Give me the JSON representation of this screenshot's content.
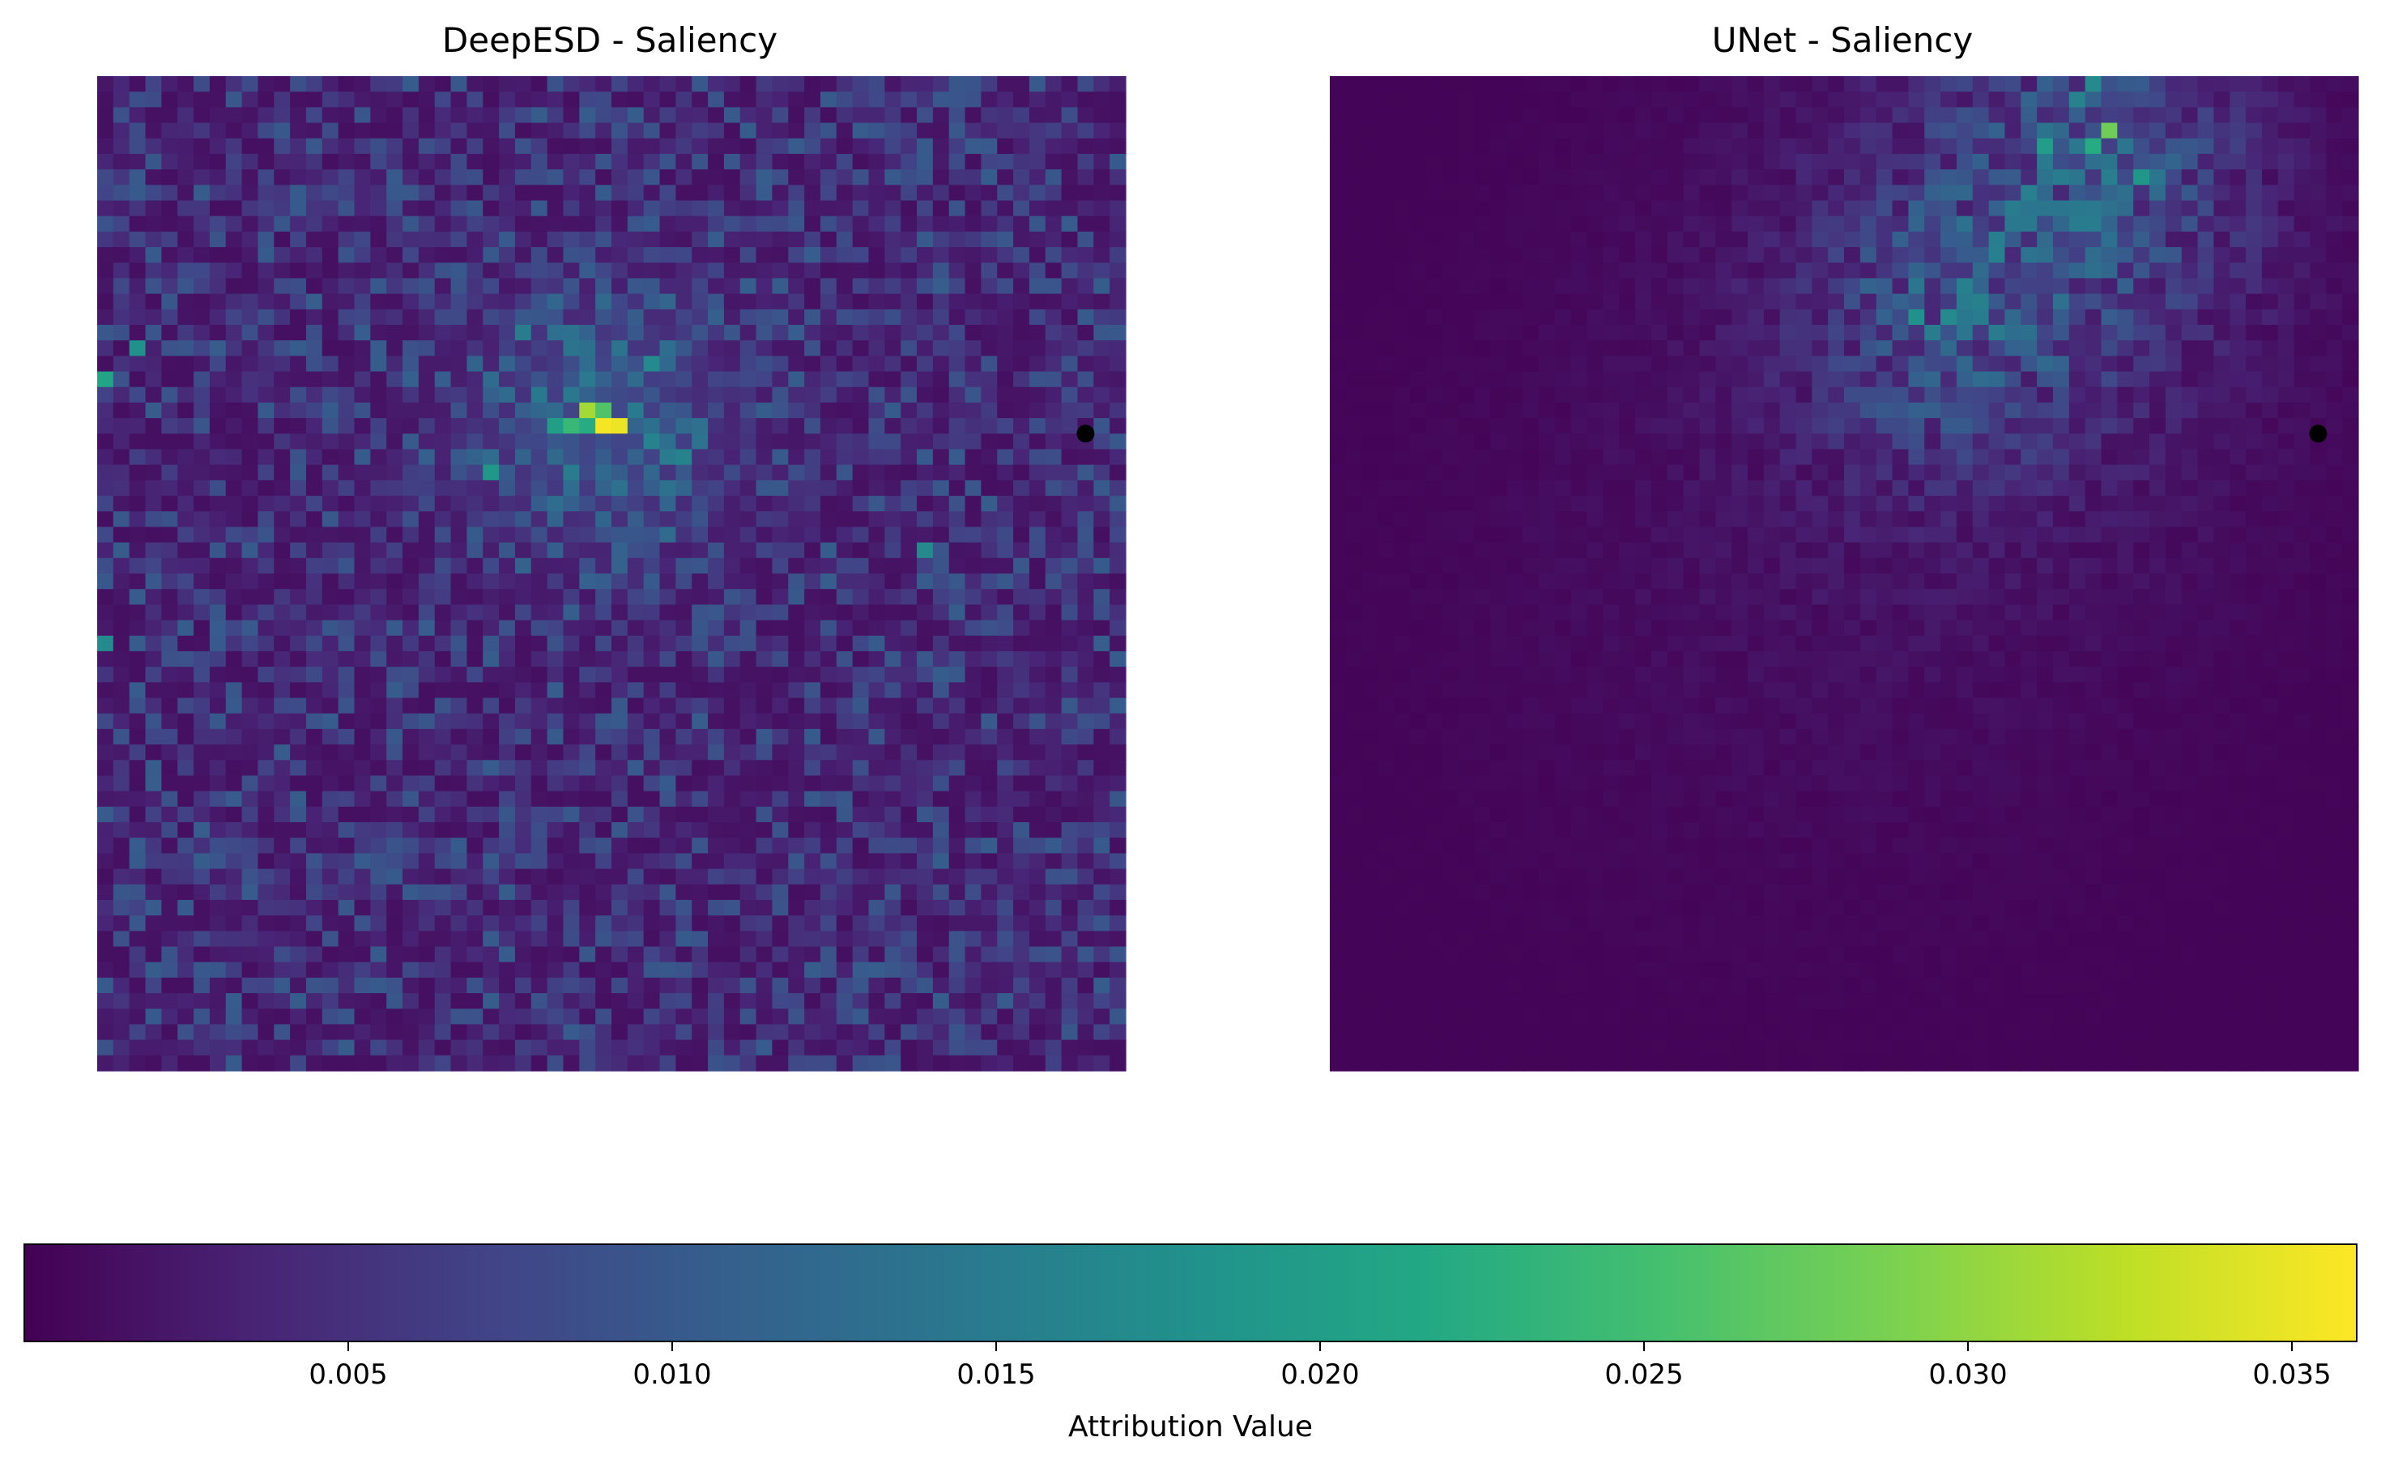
{
  "chart_data": [
    {
      "type": "heatmap",
      "title": "DeepESD - Saliency",
      "grid_size": [
        64,
        64
      ],
      "colormap": "viridis",
      "value_range": [
        0.0002,
        0.0358
      ],
      "axes_visible": false,
      "marker": {
        "shape": "dot",
        "color": "#000000",
        "grid_position": [
          61.5,
          23
        ]
      },
      "hotspots": [
        {
          "cell": [
            31,
            22
          ],
          "value": 0.0355
        },
        {
          "cell": [
            32,
            22
          ],
          "value": 0.035
        },
        {
          "cell": [
            30,
            21
          ],
          "value": 0.031
        },
        {
          "cell": [
            31,
            21
          ],
          "value": 0.026
        },
        {
          "cell": [
            29,
            22
          ],
          "value": 0.024
        },
        {
          "cell": [
            30,
            22
          ],
          "value": 0.022
        },
        {
          "cell": [
            28,
            22
          ],
          "value": 0.02
        },
        {
          "cell": [
            0,
            19
          ],
          "value": 0.021
        },
        {
          "cell": [
            2,
            17
          ],
          "value": 0.018
        },
        {
          "cell": [
            24,
            25
          ],
          "value": 0.019
        },
        {
          "cell": [
            34,
            18
          ],
          "value": 0.017
        },
        {
          "cell": [
            36,
            24
          ],
          "value": 0.016
        },
        {
          "cell": [
            51,
            30
          ],
          "value": 0.017
        },
        {
          "cell": [
            0,
            36
          ],
          "value": 0.017
        },
        {
          "cell": [
            26,
            16
          ],
          "value": 0.015
        },
        {
          "cell": [
            34,
            23
          ],
          "value": 0.016
        },
        {
          "cell": [
            35,
            24
          ],
          "value": 0.015
        }
      ]
    },
    {
      "type": "heatmap",
      "title": "UNet - Saliency",
      "grid_size": [
        64,
        64
      ],
      "colormap": "viridis",
      "value_range": [
        0.0002,
        0.0358
      ],
      "axes_visible": false,
      "marker": {
        "shape": "dot",
        "color": "#000000",
        "grid_position": [
          61.5,
          23
        ]
      },
      "hotspots": [
        {
          "cell": [
            48,
            3
          ],
          "value": 0.028
        },
        {
          "cell": [
            47,
            4
          ],
          "value": 0.022
        },
        {
          "cell": [
            44,
            4
          ],
          "value": 0.02
        },
        {
          "cell": [
            50,
            6
          ],
          "value": 0.019
        },
        {
          "cell": [
            47,
            0
          ],
          "value": 0.017
        },
        {
          "cell": [
            46,
            1
          ],
          "value": 0.016
        },
        {
          "cell": [
            36,
            15
          ],
          "value": 0.018
        },
        {
          "cell": [
            38,
            15
          ],
          "value": 0.017
        },
        {
          "cell": [
            37,
            16
          ],
          "value": 0.015
        },
        {
          "cell": [
            39,
            16
          ],
          "value": 0.014
        },
        {
          "cell": [
            45,
            6
          ],
          "value": 0.015
        },
        {
          "cell": [
            51,
            6
          ],
          "value": 0.014
        }
      ]
    }
  ],
  "colorbar": {
    "label": "Attribution Value",
    "colormap": "viridis",
    "range": [
      0.0,
      0.036
    ],
    "ticks": [
      0.005,
      0.01,
      0.015,
      0.02,
      0.025,
      0.03,
      0.035
    ],
    "tick_labels": [
      "0.005",
      "0.010",
      "0.015",
      "0.020",
      "0.025",
      "0.030",
      "0.035"
    ],
    "orientation": "horizontal"
  }
}
